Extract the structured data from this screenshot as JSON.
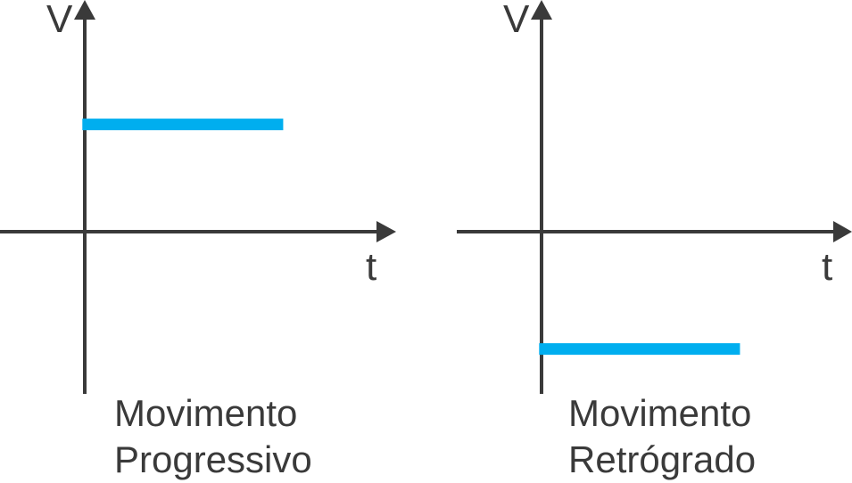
{
  "colors": {
    "axis": "#3a3a3a",
    "line": "#00aeef",
    "text": "#3a3a3a"
  },
  "chart_data": [
    {
      "type": "line",
      "xlabel": "t",
      "ylabel": "V",
      "caption_lines": [
        "Movimento",
        "Progressivo"
      ],
      "series": [
        {
          "x": [
            0,
            1
          ],
          "values": [
            1,
            1
          ]
        }
      ],
      "xlim": [
        -0.41,
        1.5
      ],
      "ylim": [
        -1.4,
        1.95
      ],
      "grid": false,
      "ticks": false
    },
    {
      "type": "line",
      "xlabel": "t",
      "ylabel": "V",
      "caption_lines": [
        "Movimento",
        "Retrógrado"
      ],
      "series": [
        {
          "x": [
            0,
            1
          ],
          "values": [
            -1,
            -1
          ]
        }
      ],
      "xlim": [
        -0.41,
        1.5
      ],
      "ylim": [
        -1.4,
        1.95
      ],
      "grid": false,
      "ticks": false
    }
  ]
}
